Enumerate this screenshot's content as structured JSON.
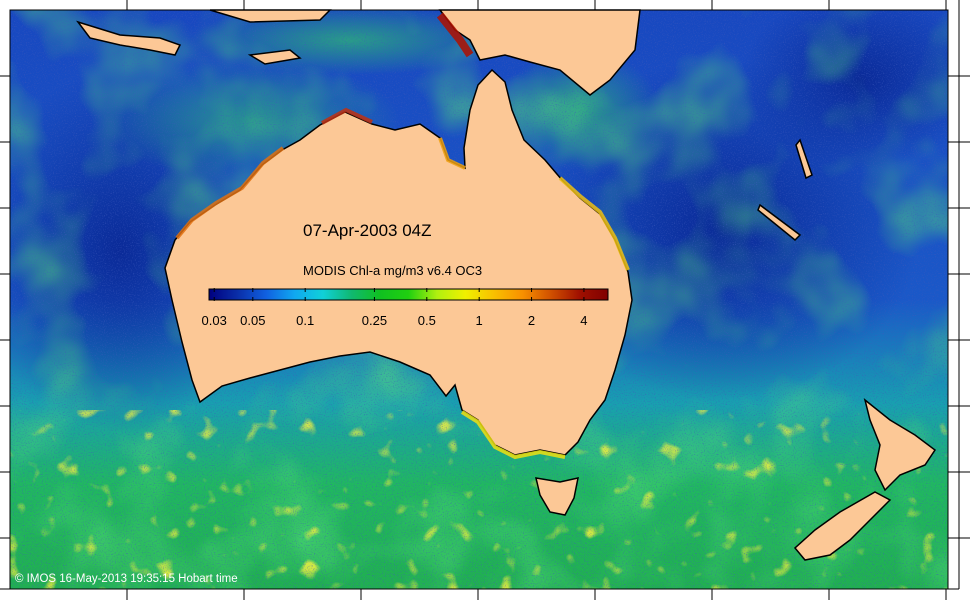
{
  "map": {
    "title": "07-Apr-2003 04Z",
    "colorbar": {
      "label": "MODIS Chl-a mg/m3 v6.4 OC3",
      "range": [
        0.028,
        5.5
      ],
      "ticks": [
        {
          "label": "0.03",
          "value": 0.03
        },
        {
          "label": "0.05",
          "value": 0.05
        },
        {
          "label": "0.1",
          "value": 0.1
        },
        {
          "label": "0.25",
          "value": 0.25
        },
        {
          "label": "0.5",
          "value": 0.5
        },
        {
          "label": "1",
          "value": 1
        },
        {
          "label": "2",
          "value": 2
        },
        {
          "label": "4",
          "value": 4
        }
      ],
      "colors": [
        "#00007f",
        "#0a2ea8",
        "#1060e0",
        "#10a8f0",
        "#10d0d8",
        "#10b870",
        "#10c020",
        "#20d010",
        "#b0f010",
        "#f0f000",
        "#f8c000",
        "#f89000",
        "#d05000",
        "#a01000",
        "#800000"
      ]
    },
    "copyright": "© IMOS 16-May-2013 19:35:15 Hobart time",
    "land_color": "#fcc896"
  }
}
